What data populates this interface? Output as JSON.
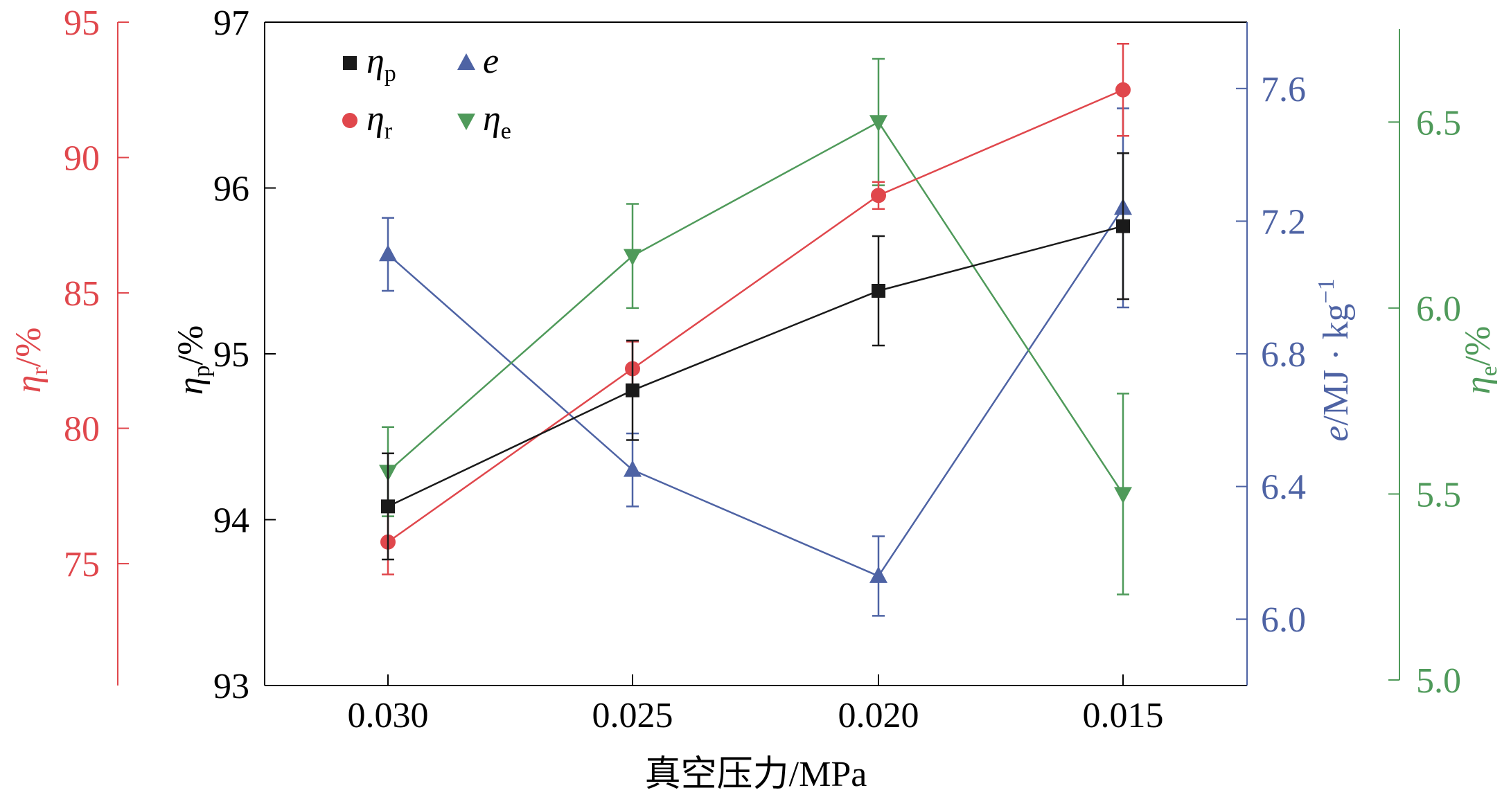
{
  "chart_data": {
    "type": "line",
    "xlabel": "真空压力/MPa",
    "categories": [
      "0.030",
      "0.025",
      "0.020",
      "0.015"
    ],
    "axes": {
      "eta_p": {
        "label_main": "η",
        "label_sub": "p",
        "label_unit": "/%",
        "ylim": [
          93,
          97
        ],
        "ticks": [
          93,
          94,
          95,
          96,
          97
        ],
        "tick_labels": [
          "93",
          "94",
          "95",
          "96",
          "97"
        ],
        "color": "#000000",
        "side": "left-inner"
      },
      "eta_r": {
        "label_main": "η",
        "label_sub": "r",
        "label_unit": "/%",
        "ylim": [
          70.5,
          95
        ],
        "ticks": [
          75,
          80,
          85,
          90,
          95
        ],
        "tick_labels": [
          "75",
          "80",
          "85",
          "90",
          "95"
        ],
        "color": "#e0474c",
        "side": "left-outer"
      },
      "e": {
        "label_main": "e",
        "label_unit": "/MJ · kg",
        "label_sup": "−1",
        "ylim": [
          5.8,
          7.8
        ],
        "ticks": [
          6.0,
          6.4,
          6.8,
          7.2,
          7.6
        ],
        "tick_labels": [
          "6.0",
          "6.4",
          "6.8",
          "7.2",
          "7.6"
        ],
        "color": "#4e63a4",
        "side": "right-inner"
      },
      "eta_e": {
        "label_main": "η",
        "label_sub": "e",
        "label_unit": "/%",
        "ylim": [
          5.0,
          6.75
        ],
        "ticks": [
          5.0,
          5.5,
          6.0,
          6.5
        ],
        "tick_labels": [
          "5.0",
          "5.5",
          "6.0",
          "6.5"
        ],
        "color": "#4f9a5a",
        "side": "right-outer"
      }
    },
    "series": [
      {
        "key": "eta_p",
        "name_main": "η",
        "name_sub": "p",
        "axis": "eta_p",
        "marker": "square",
        "color": "#1a1a1a",
        "values": [
          94.08,
          94.78,
          95.38,
          95.77
        ],
        "err": [
          0.32,
          0.3,
          0.33,
          0.44
        ]
      },
      {
        "key": "eta_r",
        "name_main": "η",
        "name_sub": "r",
        "axis": "eta_r",
        "marker": "circle",
        "color": "#e0474c",
        "values": [
          75.8,
          82.2,
          88.6,
          92.5
        ],
        "err": [
          1.2,
          1.0,
          0.5,
          1.7
        ]
      },
      {
        "key": "e",
        "name_main": "e",
        "name_sub": "",
        "axis": "e",
        "marker": "triangle-up",
        "color": "#4e63a4",
        "values": [
          7.1,
          6.45,
          6.13,
          7.24
        ],
        "err": [
          0.11,
          0.11,
          0.12,
          0.3
        ]
      },
      {
        "key": "eta_e",
        "name_main": "η",
        "name_sub": "e",
        "axis": "eta_e",
        "marker": "triangle-down",
        "color": "#4f9a5a",
        "values": [
          5.56,
          6.14,
          6.5,
          5.5
        ],
        "err": [
          0.12,
          0.14,
          0.17,
          0.27
        ]
      }
    ],
    "legend": {
      "position": "top-left",
      "rows": [
        [
          "eta_p",
          "e"
        ],
        [
          "eta_r",
          "eta_e"
        ]
      ]
    }
  }
}
